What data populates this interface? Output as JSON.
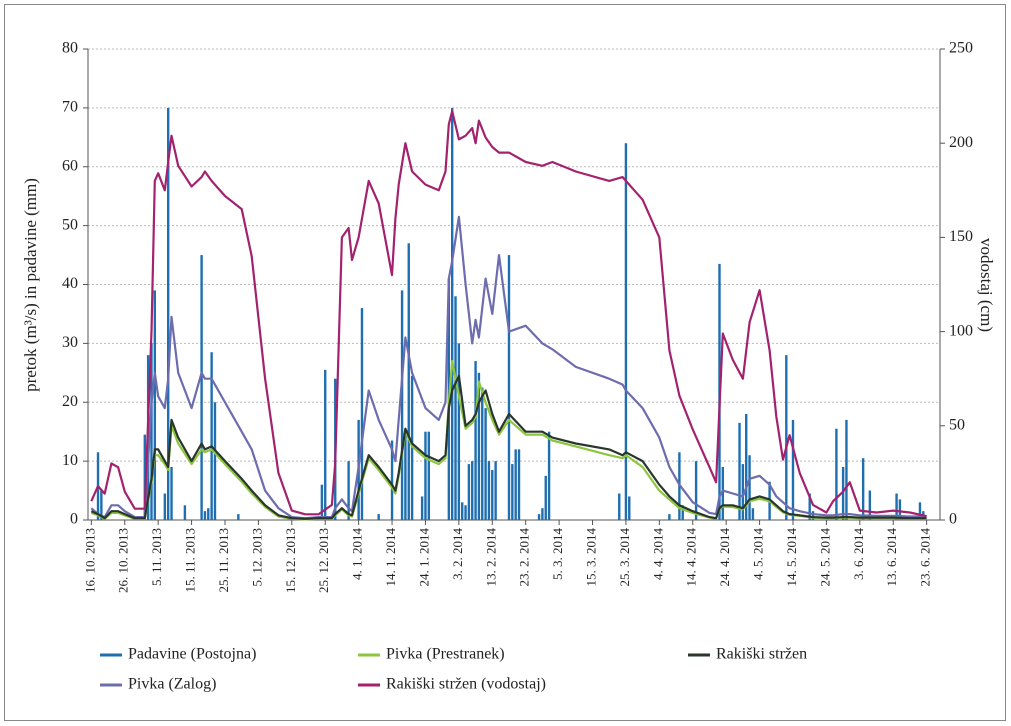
{
  "chart_data": {
    "type": "combo",
    "y_label": "pretok (m³/s) in padavine (mm)",
    "y2_label": "vodostaj (cm)",
    "ylim": [
      0,
      80
    ],
    "yticks": [
      0,
      10,
      20,
      30,
      40,
      50,
      60,
      70,
      80
    ],
    "y2lim": [
      0,
      250
    ],
    "y2ticks": [
      0,
      50,
      100,
      150,
      200,
      250
    ],
    "grid": true,
    "xlim": [
      "2013-10-15",
      "2014-06-27"
    ],
    "xticks": [
      {
        "value": "2013-10-16",
        "label": "16. 10. 2013"
      },
      {
        "value": "2013-10-26",
        "label": "26. 10. 2013"
      },
      {
        "value": "2013-11-05",
        "label": "5. 11. 2013"
      },
      {
        "value": "2013-11-15",
        "label": "15. 11. 2013"
      },
      {
        "value": "2013-11-25",
        "label": "25. 11. 2013"
      },
      {
        "value": "2013-12-05",
        "label": "5. 12. 2013"
      },
      {
        "value": "2013-12-15",
        "label": "15. 12. 2013"
      },
      {
        "value": "2013-12-25",
        "label": "25. 12. 2013"
      },
      {
        "value": "2014-01-04",
        "label": "4. 1. 2014"
      },
      {
        "value": "2014-01-14",
        "label": "14. 1. 2014"
      },
      {
        "value": "2014-01-24",
        "label": "24. 1. 2014"
      },
      {
        "value": "2014-02-03",
        "label": "3. 2. 2014"
      },
      {
        "value": "2014-02-13",
        "label": "13. 2. 2014"
      },
      {
        "value": "2014-02-23",
        "label": "23. 2. 2014"
      },
      {
        "value": "2014-03-05",
        "label": "5. 3. 2014"
      },
      {
        "value": "2014-03-15",
        "label": "15. 3. 2014"
      },
      {
        "value": "2014-03-25",
        "label": "25. 3. 2014"
      },
      {
        "value": "2014-04-04",
        "label": "4. 4. 2014"
      },
      {
        "value": "2014-04-14",
        "label": "14. 4. 2014"
      },
      {
        "value": "2014-04-24",
        "label": "24. 4. 2014"
      },
      {
        "value": "2014-05-04",
        "label": "4. 5. 2014"
      },
      {
        "value": "2014-05-14",
        "label": "14. 5. 2014"
      },
      {
        "value": "2014-05-24",
        "label": "24. 5. 2014"
      },
      {
        "value": "2014-06-03",
        "label": "3. 6. 2014"
      },
      {
        "value": "2014-06-13",
        "label": "13. 6. 2014"
      },
      {
        "value": "2014-06-23",
        "label": "23. 6. 2014"
      }
    ],
    "x": [
      "2013-10-16",
      "2013-10-18",
      "2013-10-20",
      "2013-10-22",
      "2013-10-24",
      "2013-10-26",
      "2013-10-29",
      "2013-11-01",
      "2013-11-03",
      "2013-11-04",
      "2013-11-05",
      "2013-11-07",
      "2013-11-08",
      "2013-11-09",
      "2013-11-11",
      "2013-11-15",
      "2013-11-18",
      "2013-11-19",
      "2013-11-21",
      "2013-11-25",
      "2013-11-30",
      "2013-12-03",
      "2013-12-07",
      "2013-12-11",
      "2013-12-15",
      "2013-12-19",
      "2013-12-23",
      "2013-12-27",
      "2013-12-28",
      "2013-12-30",
      "2014-01-01",
      "2014-01-02",
      "2014-01-04",
      "2014-01-07",
      "2014-01-10",
      "2014-01-14",
      "2014-01-15",
      "2014-01-16",
      "2014-01-18",
      "2014-01-20",
      "2014-01-24",
      "2014-01-28",
      "2014-01-30",
      "2014-01-31",
      "2014-02-01",
      "2014-02-03",
      "2014-02-05",
      "2014-02-07",
      "2014-02-08",
      "2014-02-09",
      "2014-02-11",
      "2014-02-13",
      "2014-02-15",
      "2014-02-18",
      "2014-02-23",
      "2014-02-28",
      "2014-03-03",
      "2014-03-10",
      "2014-03-20",
      "2014-03-24",
      "2014-03-25",
      "2014-03-30",
      "2014-04-04",
      "2014-04-07",
      "2014-04-10",
      "2014-04-14",
      "2014-04-19",
      "2014-04-21",
      "2014-04-22",
      "2014-04-23",
      "2014-04-26",
      "2014-04-29",
      "2014-05-01",
      "2014-05-04",
      "2014-05-07",
      "2014-05-09",
      "2014-05-11",
      "2014-05-13",
      "2014-05-16",
      "2014-05-20",
      "2014-05-24",
      "2014-05-26",
      "2014-05-29",
      "2014-05-31",
      "2014-06-03",
      "2014-06-08",
      "2014-06-13",
      "2014-06-18",
      "2014-06-23"
    ],
    "series": [
      {
        "name": "Padavine (Postojna)",
        "type": "bar",
        "color": "#1f6fb0",
        "x": [
          "2013-10-18",
          "2013-10-19",
          "2013-11-01",
          "2013-11-02",
          "2013-11-03",
          "2013-11-04",
          "2013-11-07",
          "2013-11-08",
          "2013-11-09",
          "2013-11-13",
          "2013-11-18",
          "2013-11-19",
          "2013-11-20",
          "2013-11-21",
          "2013-11-22",
          "2013-11-29",
          "2013-12-24",
          "2013-12-25",
          "2013-12-28",
          "2014-01-01",
          "2014-01-04",
          "2014-01-05",
          "2014-01-10",
          "2014-01-14",
          "2014-01-17",
          "2014-01-18",
          "2014-01-19",
          "2014-01-20",
          "2014-01-23",
          "2014-01-24",
          "2014-01-25",
          "2014-01-31",
          "2014-02-01",
          "2014-02-02",
          "2014-02-03",
          "2014-02-04",
          "2014-02-05",
          "2014-02-06",
          "2014-02-07",
          "2014-02-08",
          "2014-02-09",
          "2014-02-10",
          "2014-02-11",
          "2014-02-12",
          "2014-02-13",
          "2014-02-14",
          "2014-02-18",
          "2014-02-19",
          "2014-02-20",
          "2014-02-21",
          "2014-02-27",
          "2014-02-28",
          "2014-03-01",
          "2014-03-02",
          "2014-03-23",
          "2014-03-25",
          "2014-03-26",
          "2014-04-07",
          "2014-04-10",
          "2014-04-11",
          "2014-04-15",
          "2014-04-22",
          "2014-04-23",
          "2014-04-28",
          "2014-04-29",
          "2014-04-30",
          "2014-05-01",
          "2014-05-02",
          "2014-05-07",
          "2014-05-12",
          "2014-05-14",
          "2014-05-19",
          "2014-05-20",
          "2014-05-27",
          "2014-05-29",
          "2014-05-30",
          "2014-06-04",
          "2014-06-06",
          "2014-06-14",
          "2014-06-15",
          "2014-06-21",
          "2014-06-22"
        ],
        "values": [
          11.5,
          5,
          14.5,
          28,
          30,
          39,
          4.5,
          70,
          9,
          2.5,
          45,
          1.5,
          2,
          28.5,
          20,
          1,
          6,
          25.5,
          24,
          10,
          17,
          36,
          1,
          13.5,
          39,
          15,
          47,
          24.5,
          4,
          15,
          15,
          41,
          70,
          38,
          30,
          3,
          2.5,
          9.5,
          10,
          27,
          25,
          22.5,
          19,
          10,
          8.5,
          10,
          45,
          9.5,
          12,
          12,
          1,
          2,
          7.5,
          15,
          4.5,
          64,
          4,
          1,
          11.5,
          2.5,
          10,
          43.5,
          9,
          16.5,
          9.5,
          18,
          11,
          2,
          6.5,
          28,
          17,
          4.5,
          1.5,
          15.5,
          9,
          17,
          10.5,
          5,
          4.5,
          3.5,
          3,
          1.5
        ]
      },
      {
        "name": "Pivka (Zalog)",
        "type": "line",
        "color": "#6d6cae",
        "values": [
          2,
          1,
          0.5,
          2.5,
          2.5,
          1.5,
          0.5,
          0.5,
          20,
          25,
          21,
          19,
          24,
          34.5,
          25,
          19,
          25,
          24,
          24,
          20,
          15,
          12,
          5,
          2,
          0.5,
          0.3,
          0.5,
          0.5,
          2,
          3.5,
          2,
          1.5,
          9,
          22,
          17,
          12,
          10,
          17,
          31,
          25,
          19,
          17,
          20,
          41,
          44,
          51.5,
          40,
          30,
          34,
          31,
          41,
          35,
          45,
          32,
          33,
          30,
          29,
          26,
          24,
          23,
          22,
          19,
          14,
          9,
          6,
          3,
          1.2,
          1,
          4,
          5,
          4.5,
          4,
          7,
          7.5,
          6,
          4,
          3,
          2,
          1.5,
          1,
          0.8,
          0.8,
          1,
          1,
          0.8,
          0.7,
          0.7,
          0.6,
          0.6
        ]
      },
      {
        "name": "Pivka (Prestranek)",
        "type": "line",
        "color": "#8cc63e",
        "values": [
          1.2,
          0.8,
          0.2,
          1.2,
          1.2,
          0.8,
          0.2,
          0.2,
          6.5,
          11,
          11,
          9.5,
          8.5,
          16,
          13,
          9.5,
          12,
          11.5,
          12,
          9.5,
          6.5,
          4.5,
          2.2,
          0.6,
          0.2,
          0.1,
          0.2,
          0.2,
          0.8,
          1.8,
          0.8,
          0.6,
          4.5,
          10.5,
          8.5,
          5.5,
          4.5,
          7.5,
          15,
          12.5,
          10.5,
          9.5,
          10.5,
          20,
          27,
          21,
          15.5,
          16.5,
          17.5,
          23.5,
          20,
          17,
          14.5,
          17,
          14.5,
          14.5,
          13.5,
          12.5,
          11,
          10.5,
          11,
          9,
          5,
          3.5,
          2,
          1.2,
          0.4,
          0.2,
          1.8,
          2.3,
          2.2,
          1.8,
          3.2,
          3.6,
          3.2,
          2.2,
          1.3,
          0.9,
          0.7,
          0.4,
          0.3,
          0.3,
          0.4,
          0.4,
          0.3,
          0.3,
          0.3,
          0.2,
          0.2
        ]
      },
      {
        "name": "Rakiški stržen",
        "type": "line",
        "color": "#2a352c",
        "values": [
          1.5,
          1,
          0.3,
          1.5,
          1.5,
          1,
          0.3,
          0.3,
          7,
          12,
          12,
          10,
          9,
          17,
          14,
          10,
          13,
          12,
          12.5,
          10,
          7,
          5,
          2.5,
          0.8,
          0.3,
          0.2,
          0.3,
          0.3,
          1,
          2,
          1,
          0.8,
          5,
          11,
          9,
          6,
          5,
          8,
          15.5,
          13,
          11,
          10,
          11,
          19,
          22,
          24.5,
          16,
          17,
          18,
          20,
          22,
          18,
          15,
          18,
          15,
          15,
          14,
          13,
          12,
          11,
          11.5,
          10,
          6,
          4,
          2.5,
          1.5,
          0.5,
          0.3,
          2,
          2.5,
          2.5,
          2,
          3.5,
          4,
          3.5,
          2.5,
          1.5,
          1,
          0.8,
          0.5,
          0.4,
          0.4,
          0.5,
          0.5,
          0.4,
          0.4,
          0.4,
          0.3,
          0.3
        ]
      },
      {
        "name": "Rakiški stržen (vodostaj)",
        "type": "line",
        "axis": "y2",
        "color": "#a3226e",
        "values": [
          10,
          18,
          14,
          30,
          28,
          15,
          6,
          6,
          100,
          180,
          184,
          175,
          190,
          204,
          188,
          177,
          182,
          185,
          180,
          172,
          165,
          140,
          75,
          25,
          5,
          3,
          3,
          8,
          30,
          150,
          155,
          138,
          150,
          180,
          168,
          130,
          160,
          178,
          200,
          185,
          178,
          175,
          185,
          210,
          217,
          202,
          204,
          208,
          200,
          212,
          203,
          198,
          195,
          195,
          190,
          188,
          190,
          185,
          180,
          182,
          180,
          170,
          150,
          90,
          66,
          48,
          28,
          20,
          60,
          99,
          85,
          75,
          105,
          122,
          90,
          55,
          32,
          45,
          25,
          8,
          4,
          10,
          15,
          20,
          5,
          4,
          5,
          4,
          2
        ]
      }
    ]
  }
}
